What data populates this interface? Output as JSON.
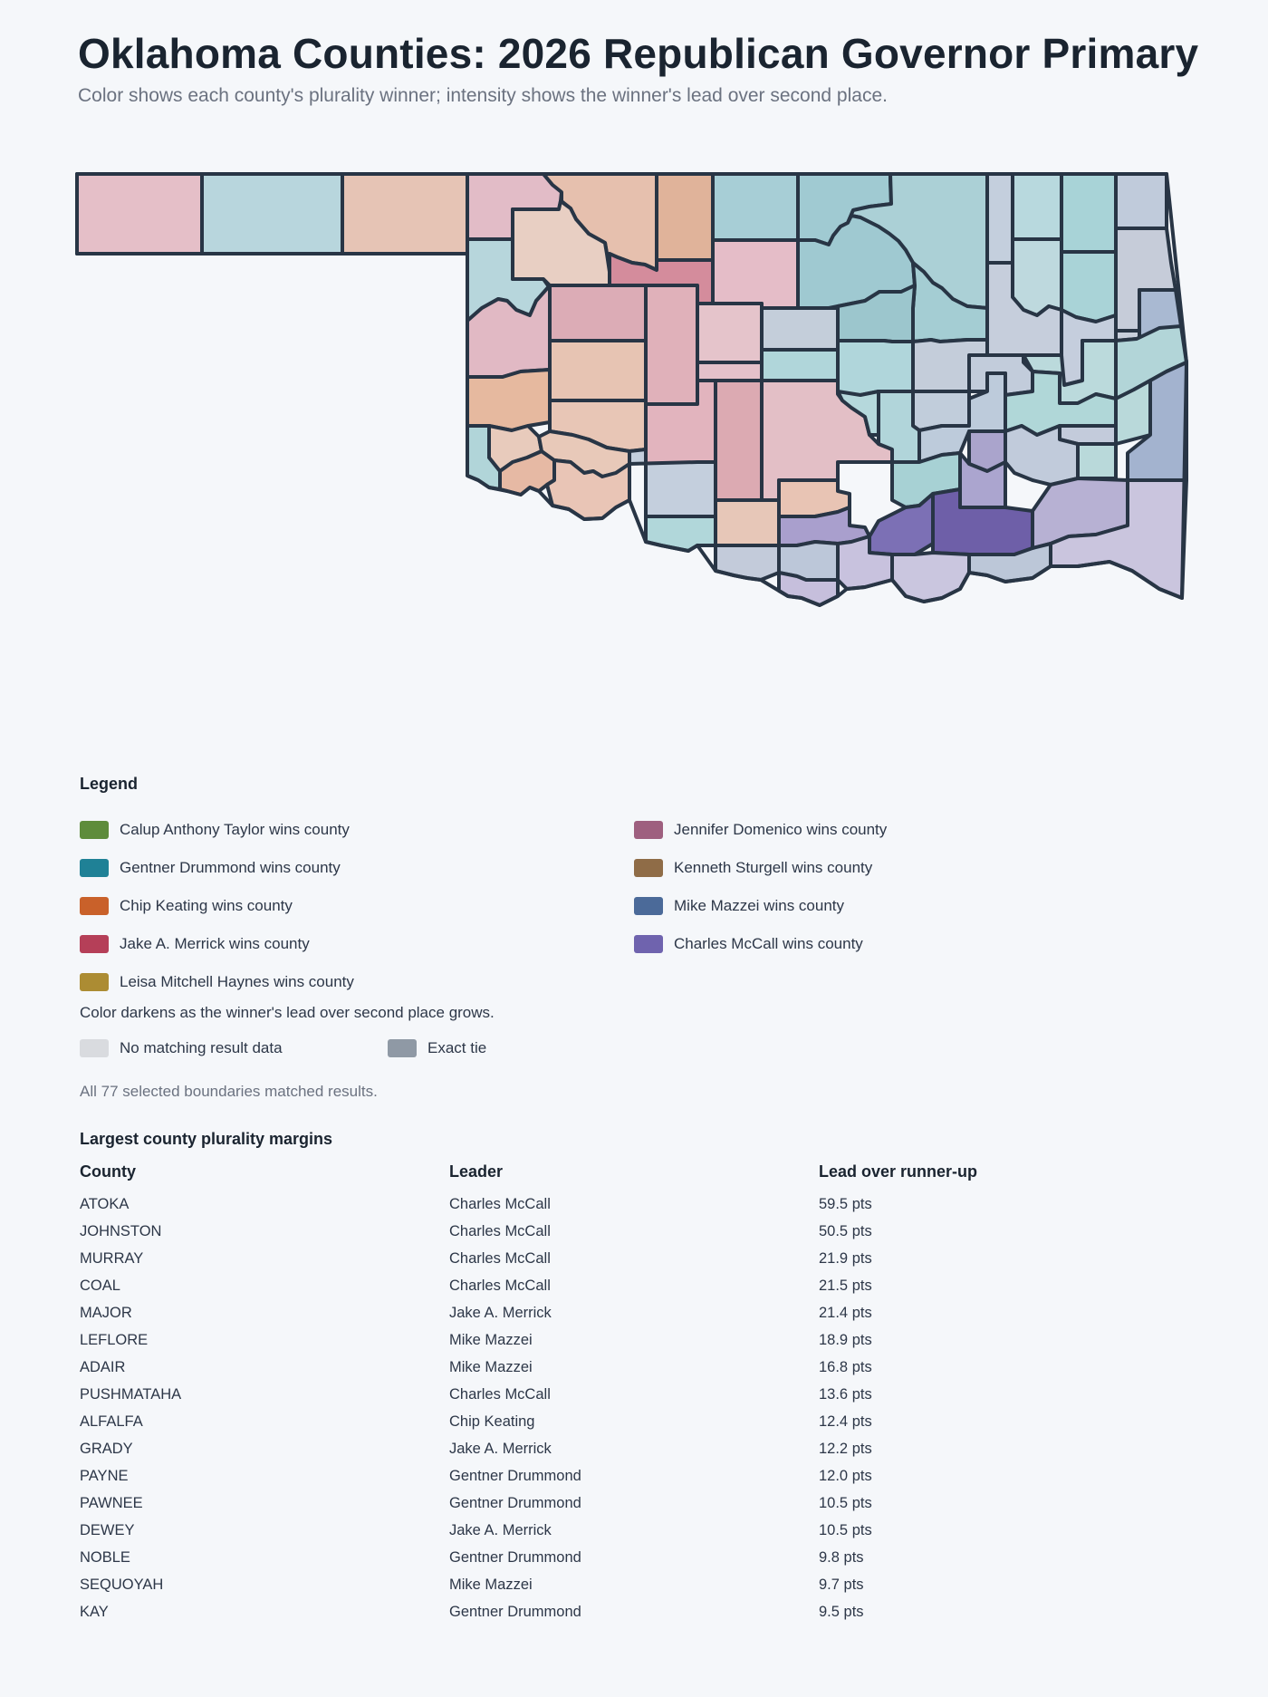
{
  "title": "Oklahoma Counties: 2026 Republican Governor Primary",
  "subtitle": "Color shows each county's plurality winner; intensity shows the winner's lead over second place.",
  "legend": {
    "title": "Legend",
    "items": [
      {
        "label": "Calup Anthony Taylor wins county",
        "color": "#5e8c3b"
      },
      {
        "label": "Jennifer Domenico wins county",
        "color": "#9e5f7f"
      },
      {
        "label": "Gentner Drummond wins county",
        "color": "#1f8196"
      },
      {
        "label": "Kenneth Sturgell wins county",
        "color": "#8f6c47"
      },
      {
        "label": "Chip Keating wins county",
        "color": "#c9612a"
      },
      {
        "label": "Mike Mazzei wins county",
        "color": "#4b6a99"
      },
      {
        "label": "Jake A. Merrick wins county",
        "color": "#b53f58"
      },
      {
        "label": "Charles McCall wins county",
        "color": "#6f63ae"
      },
      {
        "label": "Leisa Mitchell Haynes wins county",
        "color": "#ac8c33"
      }
    ],
    "intensity_note": "Color darkens as the winner's lead over second place grows.",
    "no_data": {
      "label": "No matching result data",
      "color": "#d9dbdf"
    },
    "tie": {
      "label": "Exact tie",
      "color": "#8f99a5"
    },
    "matched_note": "All 77 selected boundaries matched results."
  },
  "map": {
    "county_fills": {
      "cimarron": "#e5bfc8",
      "texas": "#b8d6dd",
      "beaver": "#e6c4b5",
      "harper": "#e2bcc7",
      "woods": "#e6c0ae",
      "alfalfa": "#e0b39a",
      "grant": "#a7ced6",
      "kay": "#a0cad2",
      "osage": "#abd0d6",
      "washington": "#c4cfdd",
      "nowata": "#b8d9de",
      "craig": "#a8d3d7",
      "ottawa": "#c0cbdb",
      "ellis": "#b7d6dc",
      "woodward": "#e8cfc3",
      "major": "#d48c9c",
      "garfield": "#e5bdc8",
      "noble": "#9fc9d1",
      "pawnee": "#a4cdd3",
      "rogers": "#bed9de",
      "mayes": "#a9d3d7",
      "delaware": "#c6ccd9",
      "roger_mills": "#e1b9c4",
      "dewey": "#dcacb6",
      "blaine": "#e0b1ba",
      "kingfisher": "#e5c4cb",
      "logan": "#c4ceda",
      "payne": "#9cc6cd",
      "creek": "#c4cdda",
      "tulsa": "#c6cedc",
      "wagoner": "#c5cedd",
      "custer": "#e7c4b3",
      "canadian": "#e4c1ca",
      "oklahoma": "#b0d6da",
      "lincoln": "#b0d6db",
      "okmulgee": "#c1cddb",
      "muskogee": "#bbdadc",
      "cherokee": "#c8cfdc",
      "adair": "#a9b9d2",
      "sequoyah": "#b2d5d8",
      "beckham": "#e6b99f",
      "washita": "#e8c6b6",
      "caddo": "#e2b4be",
      "grady": "#dcaab2",
      "mcclain": "#e3bfc6",
      "cleveland": "#b5d8dc",
      "pottawatomie": "#b1d5da",
      "seminole": "#bdcbdb",
      "okfuskee": "#c2ccdb",
      "mcintosh": "#b0d7d8",
      "haskell": "#c3cbdb",
      "pittsburg": "#c1cbdb",
      "latimer": "#b9d9da",
      "leflore": "#a3b3cf",
      "harmon": "#b1d5d9",
      "greer": "#e8cbbc",
      "kiowa": "#e8c9b9",
      "jackson": "#e6b9a4",
      "tillman": "#e9c5b6",
      "comanche": "#c4cfdd",
      "cotton": "#b1d7da",
      "stephens": "#e7c7b8",
      "garvin": "#e8c4b4",
      "murray": "#a99fcd",
      "pontotoc": "#a7d1d4",
      "hughes": "#aaa4cc",
      "coal": "#aba5cf",
      "atoka": "#6e5fa8",
      "johnston": "#7c70b5",
      "pushmataha": "#b7b1d3",
      "jefferson": "#c3cbda",
      "carter": "#bcc7d9",
      "love": "#c6bfdc",
      "marshall": "#c8c2de",
      "bryan": "#cac6df",
      "choctaw": "#bcc7d8",
      "mccurtain": "#cac5de"
    }
  },
  "table": {
    "title": "Largest county plurality margins",
    "headers": {
      "county": "County",
      "leader": "Leader",
      "lead": "Lead over runner-up"
    },
    "rows": [
      {
        "county": "ATOKA",
        "leader": "Charles McCall",
        "lead": "59.5 pts"
      },
      {
        "county": "JOHNSTON",
        "leader": "Charles McCall",
        "lead": "50.5 pts"
      },
      {
        "county": "MURRAY",
        "leader": "Charles McCall",
        "lead": "21.9 pts"
      },
      {
        "county": "COAL",
        "leader": "Charles McCall",
        "lead": "21.5 pts"
      },
      {
        "county": "MAJOR",
        "leader": "Jake A. Merrick",
        "lead": "21.4 pts"
      },
      {
        "county": "LEFLORE",
        "leader": "Mike Mazzei",
        "lead": "18.9 pts"
      },
      {
        "county": "ADAIR",
        "leader": "Mike Mazzei",
        "lead": "16.8 pts"
      },
      {
        "county": "PUSHMATAHA",
        "leader": "Charles McCall",
        "lead": "13.6 pts"
      },
      {
        "county": "ALFALFA",
        "leader": "Chip Keating",
        "lead": "12.4 pts"
      },
      {
        "county": "GRADY",
        "leader": "Jake A. Merrick",
        "lead": "12.2 pts"
      },
      {
        "county": "PAYNE",
        "leader": "Gentner Drummond",
        "lead": "12.0 pts"
      },
      {
        "county": "PAWNEE",
        "leader": "Gentner Drummond",
        "lead": "10.5 pts"
      },
      {
        "county": "DEWEY",
        "leader": "Jake A. Merrick",
        "lead": "10.5 pts"
      },
      {
        "county": "NOBLE",
        "leader": "Gentner Drummond",
        "lead": "9.8 pts"
      },
      {
        "county": "SEQUOYAH",
        "leader": "Mike Mazzei",
        "lead": "9.7 pts"
      },
      {
        "county": "KAY",
        "leader": "Gentner Drummond",
        "lead": "9.5 pts"
      }
    ]
  }
}
